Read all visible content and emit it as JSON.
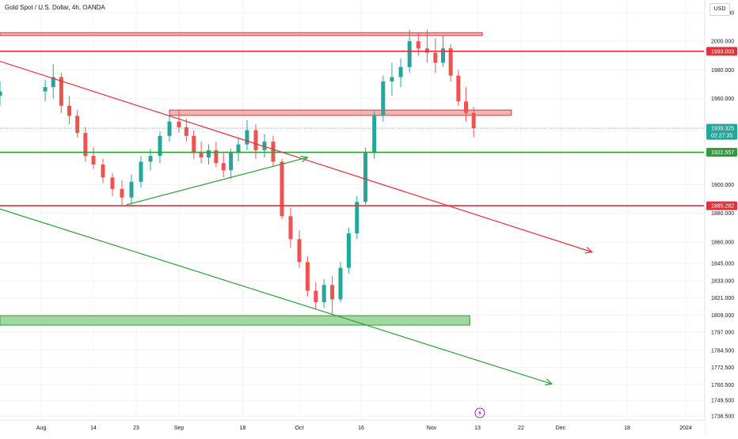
{
  "header": {
    "symbol_title": "Gold Spot / U.S. Dollar, 4h, OANDA",
    "currency": "USD"
  },
  "colors": {
    "bull": "#26a69a",
    "bear": "#ef5350",
    "red_line": "#e0313c",
    "green_line": "#2e9e34",
    "zone_red_fill": "#f5a3a8",
    "zone_green_fill": "#8fd18f",
    "grid": "#f0f3fa",
    "axis_text": "#131722"
  },
  "icons": {
    "bottom_marker": "lightning-icon"
  },
  "chart_data": {
    "type": "candlestick",
    "title": "Gold Spot / U.S. Dollar, 4h, OANDA",
    "ylabel": "USD",
    "ylim": [
      1737.5,
      2026
    ],
    "grid": true,
    "price_scale_side": "right",
    "y_ticks": [
      "2020.000",
      "2000.000",
      "1980.000",
      "1960.000",
      "1900.000",
      "1880.000",
      "1860.000",
      "1845.000",
      "1833.000",
      "1821.000",
      "1809.000",
      "1797.000",
      "1784.500",
      "1772.500",
      "1760.500",
      "1749.500",
      "1738.500"
    ],
    "x_ticks": [
      "Aug",
      "14",
      "23",
      "Sep",
      "18",
      "Oct",
      "16",
      "Nov",
      "13",
      "22",
      "Dec",
      "18",
      "2024"
    ],
    "price_labels": [
      {
        "price": 1993.003,
        "label": "1993.003",
        "kind": "resistance"
      },
      {
        "price": 1939.325,
        "label": "1939.325",
        "sub_label": "02:27:35",
        "kind": "current"
      },
      {
        "price": 1922.557,
        "label": "1922.557",
        "kind": "support"
      },
      {
        "price": 1885.282,
        "label": "1885.282",
        "kind": "resistance"
      }
    ],
    "horizontal_lines": [
      {
        "price": 1993.003,
        "color": "red"
      },
      {
        "price": 1922.557,
        "color": "green"
      },
      {
        "price": 1885.282,
        "color": "red"
      }
    ],
    "current_price": 1939.325,
    "zones": [
      {
        "price_low": 2004,
        "price_high": 2006,
        "x_from": "Jul 31",
        "x_to": "Nov 14",
        "color": "red"
      },
      {
        "price_low": 1948.3,
        "price_high": 1952.0,
        "x_from": "Aug 30",
        "x_to": "Nov 20",
        "color": "red"
      },
      {
        "price_low": 1802.0,
        "price_high": 1808.6,
        "x_from": "Jul 31",
        "x_to": "Nov 11",
        "color": "green"
      }
    ],
    "trendlines": [
      {
        "from": [
          "Jul 31",
          1986
        ],
        "to": [
          "Dec 9",
          1853
        ],
        "color": "red",
        "arrow": true
      },
      {
        "from": [
          "Aug 21",
          1886
        ],
        "to": [
          "Oct 3",
          1919
        ],
        "color": "green",
        "arrow": true
      },
      {
        "from": [
          "Jul 31",
          1883
        ],
        "to": [
          "Nov 29",
          1761
        ],
        "color": "green",
        "arrow": true
      }
    ],
    "candles": [
      {
        "date": "Jul 31",
        "o": 1962,
        "h": 1972,
        "l": 1955,
        "c": 1965
      },
      {
        "date": "Aug 2",
        "o": 1965,
        "h": 1973,
        "l": 1958,
        "c": 1968
      },
      {
        "date": "Aug 4",
        "o": 1968,
        "h": 1984,
        "l": 1960,
        "c": 1975
      },
      {
        "date": "Aug 6",
        "o": 1975,
        "h": 1978,
        "l": 1950,
        "c": 1955
      },
      {
        "date": "Aug 8",
        "o": 1955,
        "h": 1962,
        "l": 1942,
        "c": 1948
      },
      {
        "date": "Aug 10",
        "o": 1948,
        "h": 1952,
        "l": 1933,
        "c": 1936
      },
      {
        "date": "Aug 12",
        "o": 1936,
        "h": 1940,
        "l": 1916,
        "c": 1920
      },
      {
        "date": "Aug 14",
        "o": 1920,
        "h": 1926,
        "l": 1911,
        "c": 1914
      },
      {
        "date": "Aug 16",
        "o": 1914,
        "h": 1918,
        "l": 1901,
        "c": 1905
      },
      {
        "date": "Aug 18",
        "o": 1905,
        "h": 1908,
        "l": 1892,
        "c": 1897
      },
      {
        "date": "Aug 20",
        "o": 1897,
        "h": 1903,
        "l": 1885,
        "c": 1891
      },
      {
        "date": "Aug 22",
        "o": 1891,
        "h": 1907,
        "l": 1886,
        "c": 1902
      },
      {
        "date": "Aug 24",
        "o": 1902,
        "h": 1920,
        "l": 1898,
        "c": 1916
      },
      {
        "date": "Aug 26",
        "o": 1916,
        "h": 1925,
        "l": 1910,
        "c": 1920
      },
      {
        "date": "Aug 28",
        "o": 1920,
        "h": 1937,
        "l": 1915,
        "c": 1934
      },
      {
        "date": "Aug 30",
        "o": 1934,
        "h": 1950,
        "l": 1930,
        "c": 1944
      },
      {
        "date": "Sep 1",
        "o": 1944,
        "h": 1952,
        "l": 1936,
        "c": 1940
      },
      {
        "date": "Sep 3",
        "o": 1940,
        "h": 1946,
        "l": 1930,
        "c": 1934
      },
      {
        "date": "Sep 5",
        "o": 1934,
        "h": 1938,
        "l": 1918,
        "c": 1922
      },
      {
        "date": "Sep 7",
        "o": 1922,
        "h": 1930,
        "l": 1915,
        "c": 1919
      },
      {
        "date": "Sep 9",
        "o": 1919,
        "h": 1928,
        "l": 1914,
        "c": 1924
      },
      {
        "date": "Sep 11",
        "o": 1924,
        "h": 1930,
        "l": 1912,
        "c": 1915
      },
      {
        "date": "Sep 13",
        "o": 1915,
        "h": 1922,
        "l": 1905,
        "c": 1910
      },
      {
        "date": "Sep 15",
        "o": 1910,
        "h": 1925,
        "l": 1904,
        "c": 1922
      },
      {
        "date": "Sep 17",
        "o": 1922,
        "h": 1932,
        "l": 1916,
        "c": 1928
      },
      {
        "date": "Sep 19",
        "o": 1928,
        "h": 1945,
        "l": 1924,
        "c": 1938
      },
      {
        "date": "Sep 21",
        "o": 1938,
        "h": 1942,
        "l": 1918,
        "c": 1924
      },
      {
        "date": "Sep 23",
        "o": 1924,
        "h": 1935,
        "l": 1919,
        "c": 1930
      },
      {
        "date": "Sep 25",
        "o": 1930,
        "h": 1934,
        "l": 1913,
        "c": 1916
      },
      {
        "date": "Sep 27",
        "o": 1916,
        "h": 1918,
        "l": 1876,
        "c": 1878
      },
      {
        "date": "Sep 29",
        "o": 1878,
        "h": 1884,
        "l": 1856,
        "c": 1862
      },
      {
        "date": "Oct 1",
        "o": 1862,
        "h": 1868,
        "l": 1842,
        "c": 1846
      },
      {
        "date": "Oct 3",
        "o": 1846,
        "h": 1850,
        "l": 1822,
        "c": 1826
      },
      {
        "date": "Oct 5",
        "o": 1826,
        "h": 1832,
        "l": 1813,
        "c": 1818
      },
      {
        "date": "Oct 7",
        "o": 1818,
        "h": 1834,
        "l": 1814,
        "c": 1830
      },
      {
        "date": "Oct 9",
        "o": 1830,
        "h": 1836,
        "l": 1810,
        "c": 1820
      },
      {
        "date": "Oct 11",
        "o": 1820,
        "h": 1846,
        "l": 1818,
        "c": 1842
      },
      {
        "date": "Oct 13",
        "o": 1842,
        "h": 1870,
        "l": 1838,
        "c": 1866
      },
      {
        "date": "Oct 15",
        "o": 1866,
        "h": 1892,
        "l": 1862,
        "c": 1888
      },
      {
        "date": "Oct 17",
        "o": 1888,
        "h": 1926,
        "l": 1886,
        "c": 1922
      },
      {
        "date": "Oct 19",
        "o": 1922,
        "h": 1952,
        "l": 1918,
        "c": 1948
      },
      {
        "date": "Oct 21",
        "o": 1948,
        "h": 1976,
        "l": 1944,
        "c": 1972
      },
      {
        "date": "Oct 23",
        "o": 1972,
        "h": 1985,
        "l": 1962,
        "c": 1975
      },
      {
        "date": "Oct 25",
        "o": 1975,
        "h": 1988,
        "l": 1968,
        "c": 1982
      },
      {
        "date": "Oct 27",
        "o": 1982,
        "h": 2008,
        "l": 1978,
        "c": 2000
      },
      {
        "date": "Oct 29",
        "o": 2000,
        "h": 2006,
        "l": 1990,
        "c": 1995
      },
      {
        "date": "Oct 31",
        "o": 1995,
        "h": 2008,
        "l": 1985,
        "c": 1992
      },
      {
        "date": "Nov 2",
        "o": 1992,
        "h": 2002,
        "l": 1978,
        "c": 1985
      },
      {
        "date": "Nov 4",
        "o": 1985,
        "h": 2004,
        "l": 1982,
        "c": 1995
      },
      {
        "date": "Nov 6",
        "o": 1995,
        "h": 1998,
        "l": 1972,
        "c": 1976
      },
      {
        "date": "Nov 8",
        "o": 1976,
        "h": 1980,
        "l": 1955,
        "c": 1958
      },
      {
        "date": "Nov 10",
        "o": 1958,
        "h": 1968,
        "l": 1944,
        "c": 1950
      },
      {
        "date": "Nov 12",
        "o": 1950,
        "h": 1954,
        "l": 1933,
        "c": 1939.325
      }
    ]
  }
}
